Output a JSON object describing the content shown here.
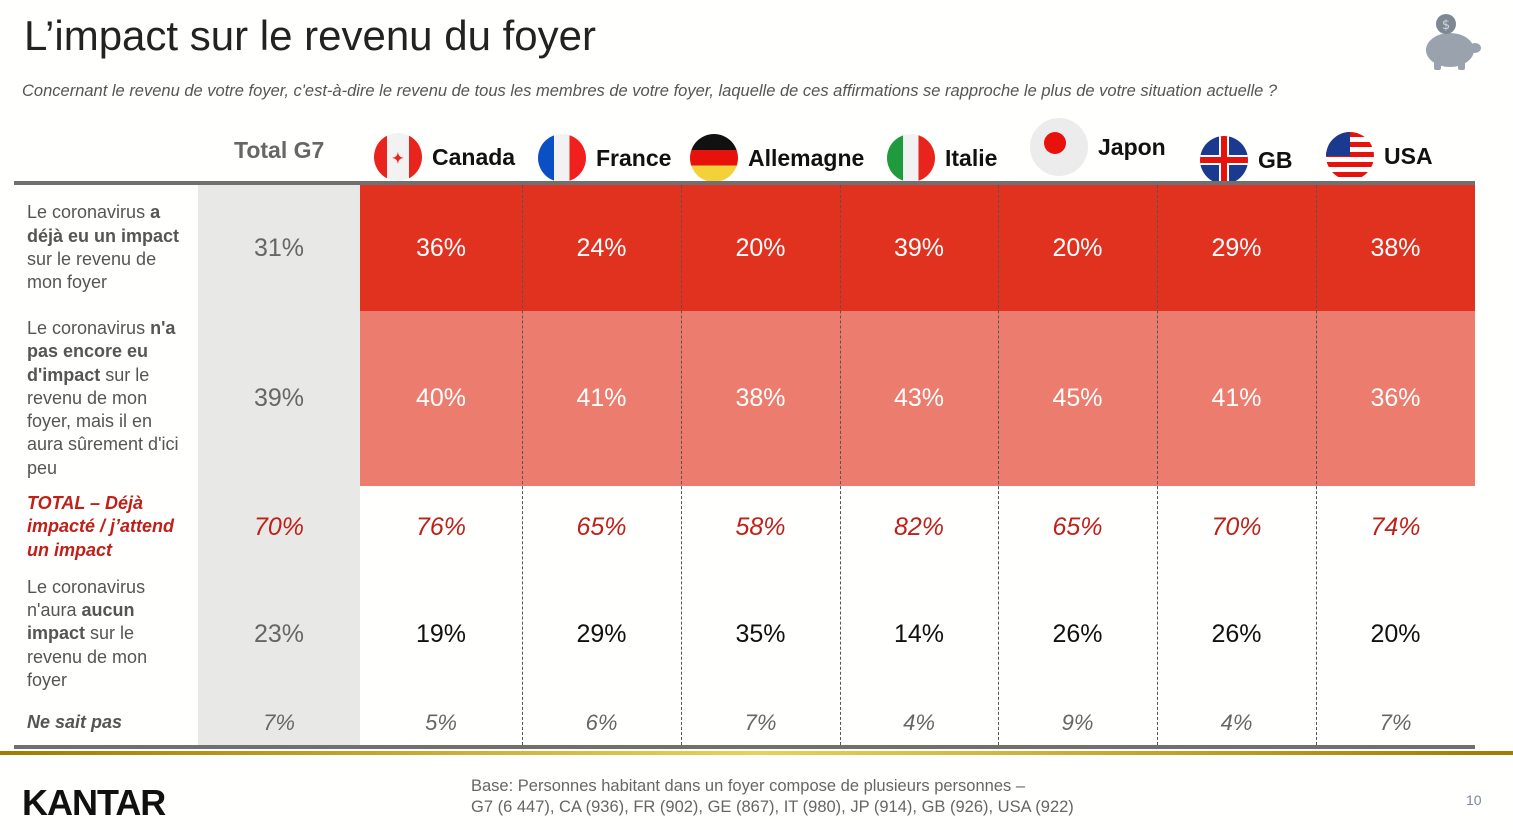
{
  "title": "L’impact sur le revenu du foyer",
  "question": "Concernant le revenu de votre foyer, c'est-à-dire le revenu de tous les membres de votre foyer, laquelle de ces affirmations se rapproche le plus de votre situation actuelle ?",
  "icon": "piggy-bank-icon",
  "columns": [
    "Total G7",
    "Canada",
    "France",
    "Allemagne",
    "Italie",
    "Japon",
    "GB",
    "USA"
  ],
  "colors": {
    "row1": "#e1311f",
    "row2": "#ec7d6e",
    "total_bg": "#e8e8e6",
    "highlight": "#c0201a"
  },
  "rows": [
    {
      "label": [
        {
          "t": "Le coronavirus ",
          "b": false
        },
        {
          "t": "a déjà eu un impact",
          "b": true
        },
        {
          "t": " sur le revenu de mon foyer",
          "b": false
        }
      ],
      "values": [
        "31%",
        "36%",
        "24%",
        "20%",
        "39%",
        "20%",
        "29%",
        "38%"
      ]
    },
    {
      "label": [
        {
          "t": "Le coronavirus ",
          "b": false
        },
        {
          "t": "n'a pas encore eu d'impact",
          "b": true
        },
        {
          "t": " sur le revenu de mon foyer, mais il en aura sûrement d'ici peu",
          "b": false
        }
      ],
      "values": [
        "39%",
        "40%",
        "41%",
        "38%",
        "43%",
        "45%",
        "41%",
        "36%"
      ]
    },
    {
      "label": [
        {
          "t": "TOTAL – Déjà impacté / j’attend un impact",
          "b": true
        }
      ],
      "values": [
        "70%",
        "76%",
        "65%",
        "58%",
        "82%",
        "65%",
        "70%",
        "74%"
      ]
    },
    {
      "label": [
        {
          "t": "Le coronavirus n'aura ",
          "b": false
        },
        {
          "t": "aucun impact",
          "b": true
        },
        {
          "t": " sur le revenu de mon foyer",
          "b": false
        }
      ],
      "values": [
        "23%",
        "19%",
        "29%",
        "35%",
        "14%",
        "26%",
        "26%",
        "20%"
      ]
    },
    {
      "label": [
        {
          "t": "Ne sait pas",
          "b": true
        }
      ],
      "values": [
        "7%",
        "5%",
        "6%",
        "7%",
        "4%",
        "9%",
        "4%",
        "7%"
      ]
    }
  ],
  "footer": {
    "logo": "KANTAR",
    "base_line1": "Base: Personnes habitant dans un foyer compose de plusieurs personnes –",
    "base_line2": "G7 (6 447), CA (936), FR (902), GE (867), IT (980), JP (914), GB (926), USA (922)",
    "page_number": "10"
  }
}
